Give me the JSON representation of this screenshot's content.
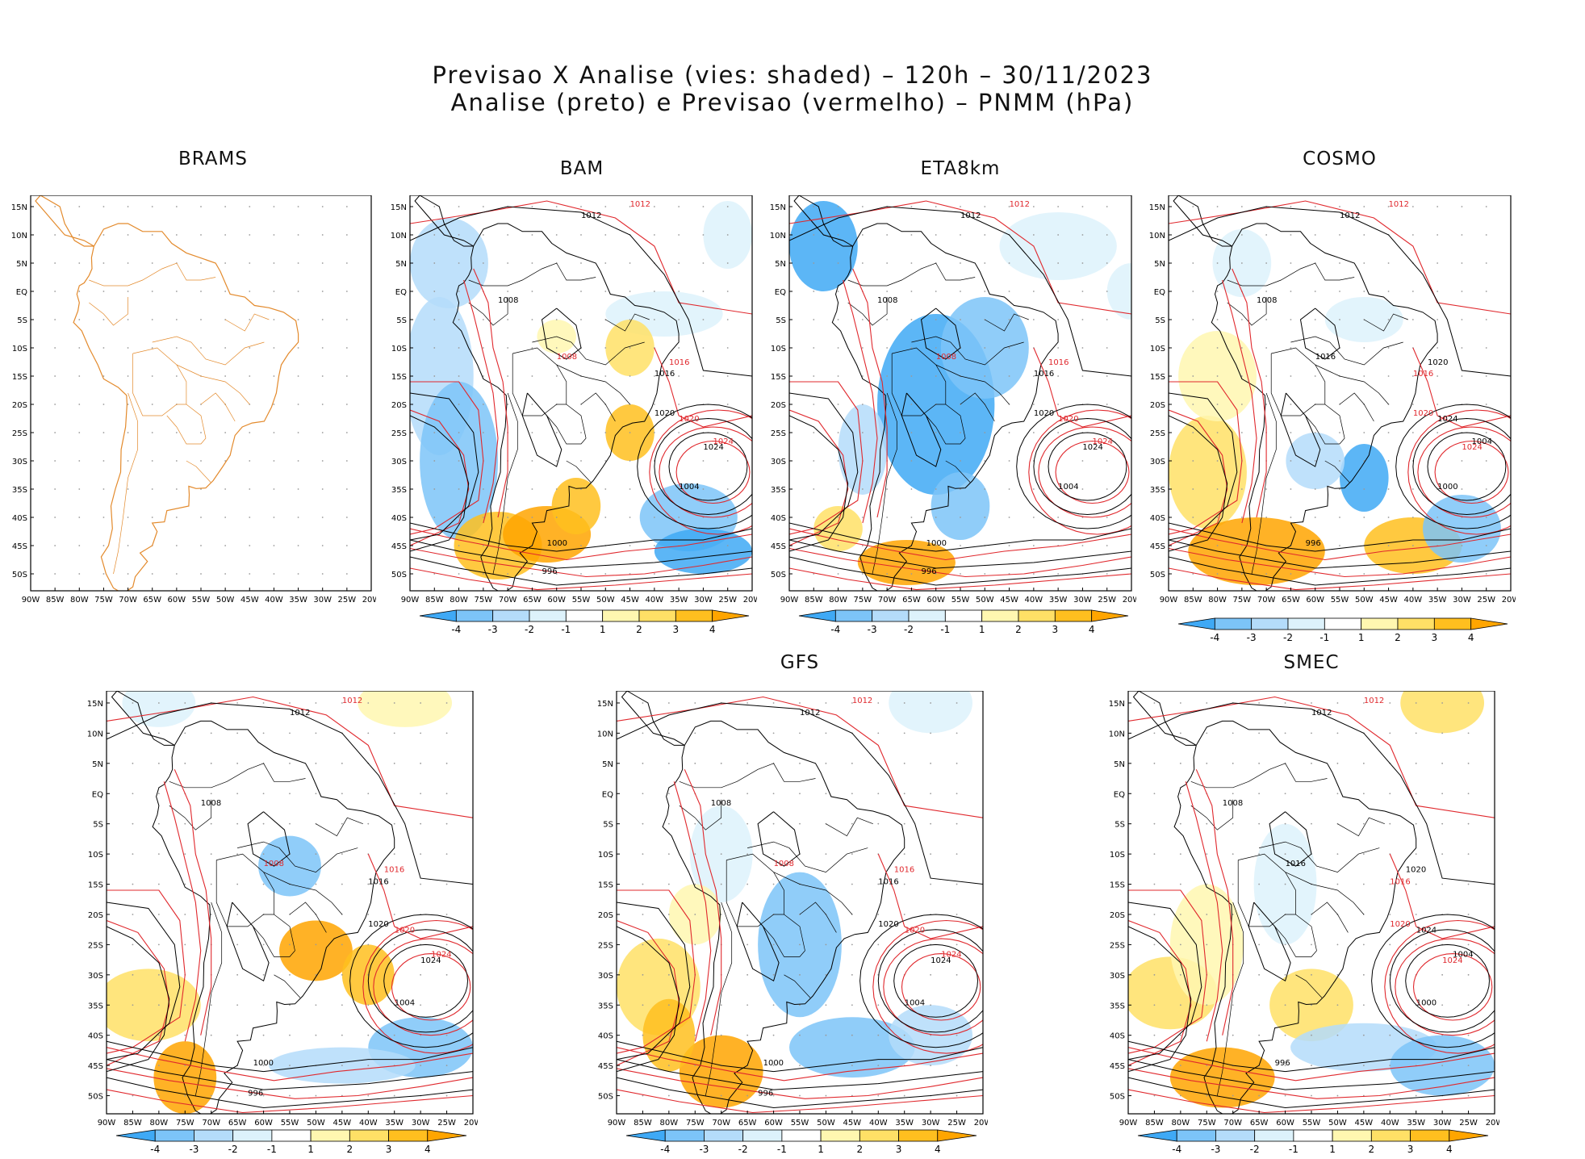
{
  "header": {
    "line1": "Previsao X Analise (vies: shaded) – 120h – 30/11/2023",
    "line2": "Analise (preto) e Previsao (vermelho) – PNMM (hPa)"
  },
  "axes": {
    "lat_ticks": [
      "15N",
      "10N",
      "5N",
      "EQ",
      "5S",
      "10S",
      "15S",
      "20S",
      "25S",
      "30S",
      "35S",
      "40S",
      "45S",
      "50S"
    ],
    "lon_ticks": [
      "90W",
      "85W",
      "80W",
      "75W",
      "70W",
      "65W",
      "60W",
      "55W",
      "50W",
      "45W",
      "40W",
      "35W",
      "30W",
      "25W",
      "20W"
    ],
    "lat_range": [
      17,
      -53
    ],
    "lon_range": [
      -90,
      -20
    ]
  },
  "colorbar": {
    "labels": [
      "-4",
      "-3",
      "-2",
      "-1",
      "1",
      "2",
      "3",
      "4"
    ],
    "colors": [
      "#3fa9f5",
      "#7cc4f8",
      "#b4dcfa",
      "#ddf2fb",
      "#ffffff",
      "#fff7b0",
      "#ffe066",
      "#ffbf1f",
      "#ffa500"
    ]
  },
  "colors": {
    "analysis": "#000000",
    "forecast": "#e0282d",
    "coast": "#000000",
    "brams_coast": "#e38a2c"
  },
  "panels": [
    {
      "name": "BRAMS",
      "title": "BRAMS",
      "has_colorbar": false,
      "labels": []
    },
    {
      "name": "BAM",
      "title": "BAM",
      "has_colorbar": true,
      "labels": [
        {
          "t": "1012",
          "c": "k"
        },
        {
          "t": "1012",
          "c": "r"
        },
        {
          "t": "1008",
          "c": "k"
        },
        {
          "t": "1008",
          "c": "r"
        },
        {
          "t": "1016",
          "c": "k"
        },
        {
          "t": "1016",
          "c": "r"
        },
        {
          "t": "1020",
          "c": "k"
        },
        {
          "t": "1020",
          "c": "r"
        },
        {
          "t": "1024",
          "c": "k"
        },
        {
          "t": "1024",
          "c": "r"
        },
        {
          "t": "1004",
          "c": "k"
        },
        {
          "t": "1000",
          "c": "k"
        },
        {
          "t": "996",
          "c": "k"
        }
      ]
    },
    {
      "name": "ETA8km",
      "title": "ETA8km",
      "has_colorbar": true,
      "labels": [
        {
          "t": "1012",
          "c": "k"
        },
        {
          "t": "1012",
          "c": "r"
        },
        {
          "t": "1008",
          "c": "k"
        },
        {
          "t": "1008",
          "c": "r"
        },
        {
          "t": "1016",
          "c": "k"
        },
        {
          "t": "1016",
          "c": "r"
        },
        {
          "t": "1020",
          "c": "k"
        },
        {
          "t": "1020",
          "c": "r"
        },
        {
          "t": "1024",
          "c": "k"
        },
        {
          "t": "1024",
          "c": "r"
        },
        {
          "t": "1004",
          "c": "k"
        },
        {
          "t": "1000",
          "c": "k"
        },
        {
          "t": "996",
          "c": "k"
        }
      ]
    },
    {
      "name": "COSMO",
      "title": "COSMO",
      "has_colorbar": true,
      "labels": [
        {
          "t": "1012",
          "c": "k"
        },
        {
          "t": "1012",
          "c": "r"
        },
        {
          "t": "1008",
          "c": "k"
        },
        {
          "t": "1016",
          "c": "k"
        },
        {
          "t": "1016",
          "c": "r"
        },
        {
          "t": "1020",
          "c": "k"
        },
        {
          "t": "1020",
          "c": "r"
        },
        {
          "t": "1024",
          "c": "k"
        },
        {
          "t": "1024",
          "c": "r"
        },
        {
          "t": "1004",
          "c": "k"
        },
        {
          "t": "1000",
          "c": "k"
        },
        {
          "t": "996",
          "c": "k"
        }
      ]
    },
    {
      "name": "panel5",
      "title": "",
      "has_colorbar": true,
      "labels": [
        {
          "t": "1012",
          "c": "k"
        },
        {
          "t": "1012",
          "c": "r"
        },
        {
          "t": "1008",
          "c": "k"
        },
        {
          "t": "1008",
          "c": "r"
        },
        {
          "t": "1016",
          "c": "k"
        },
        {
          "t": "1016",
          "c": "r"
        },
        {
          "t": "1020",
          "c": "k"
        },
        {
          "t": "1020",
          "c": "r"
        },
        {
          "t": "1024",
          "c": "k"
        },
        {
          "t": "1024",
          "c": "r"
        },
        {
          "t": "1004",
          "c": "k"
        },
        {
          "t": "1000",
          "c": "k"
        },
        {
          "t": "996",
          "c": "k"
        }
      ]
    },
    {
      "name": "GFS",
      "title": "GFS",
      "has_colorbar": true,
      "labels": [
        {
          "t": "1012",
          "c": "k"
        },
        {
          "t": "1012",
          "c": "r"
        },
        {
          "t": "1008",
          "c": "k"
        },
        {
          "t": "1008",
          "c": "r"
        },
        {
          "t": "1016",
          "c": "k"
        },
        {
          "t": "1016",
          "c": "r"
        },
        {
          "t": "1020",
          "c": "k"
        },
        {
          "t": "1020",
          "c": "r"
        },
        {
          "t": "1024",
          "c": "k"
        },
        {
          "t": "1024",
          "c": "r"
        },
        {
          "t": "1004",
          "c": "k"
        },
        {
          "t": "1000",
          "c": "k"
        },
        {
          "t": "996",
          "c": "k"
        }
      ]
    },
    {
      "name": "SMEC",
      "title": "SMEC",
      "has_colorbar": true,
      "labels": [
        {
          "t": "1012",
          "c": "k"
        },
        {
          "t": "1012",
          "c": "r"
        },
        {
          "t": "1008",
          "c": "k"
        },
        {
          "t": "1016",
          "c": "k"
        },
        {
          "t": "1016",
          "c": "r"
        },
        {
          "t": "1020",
          "c": "k"
        },
        {
          "t": "1020",
          "c": "r"
        },
        {
          "t": "1024",
          "c": "k"
        },
        {
          "t": "1024",
          "c": "r"
        },
        {
          "t": "1004",
          "c": "k"
        },
        {
          "t": "1000",
          "c": "k"
        },
        {
          "t": "996",
          "c": "k"
        }
      ]
    }
  ]
}
